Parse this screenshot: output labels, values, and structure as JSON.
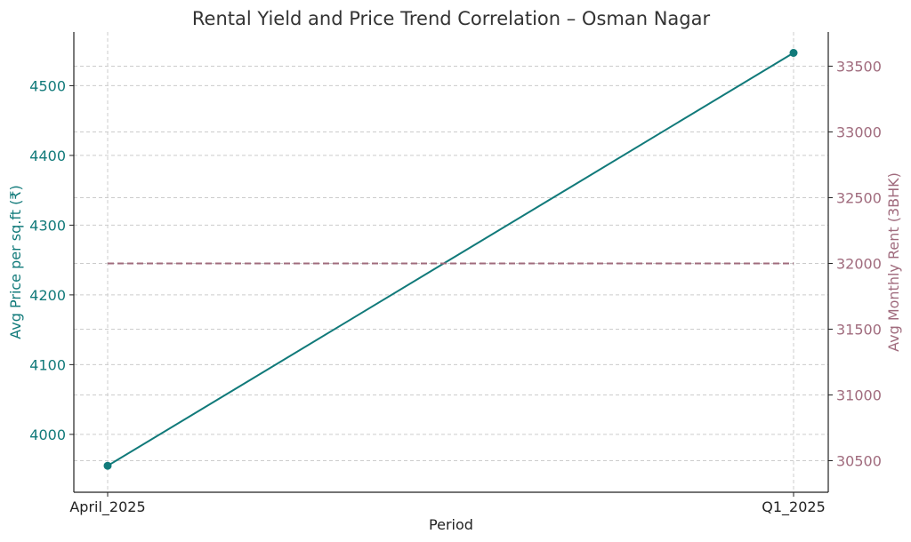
{
  "chart_data": {
    "type": "line",
    "title": "Rental Yield and Price Trend Correlation – Osman Nagar",
    "xlabel": "Period",
    "ylabel_left": "Avg Price per sq.ft (₹)",
    "ylabel_right": "Avg Monthly Rent (3BHK)",
    "categories": [
      "April_2025",
      "Q1_2025"
    ],
    "grid": true,
    "left_axis": {
      "ylim": [
        3917,
        4577
      ],
      "ticks": [
        4000,
        4100,
        4200,
        4300,
        4400,
        4500
      ],
      "color": "#117a7a"
    },
    "right_axis": {
      "ylim": [
        30260,
        33760
      ],
      "ticks": [
        30500,
        31000,
        31500,
        32000,
        32500,
        33000,
        33500
      ],
      "color": "#a06b7d"
    },
    "series": [
      {
        "axis": "left",
        "style": "solid",
        "marker": true,
        "color": "#117a7a",
        "values": [
          3955,
          4547
        ]
      },
      {
        "axis": "right",
        "style": "dashed",
        "marker": false,
        "color": "#a06b7d",
        "values": [
          32000,
          32000
        ]
      }
    ]
  }
}
